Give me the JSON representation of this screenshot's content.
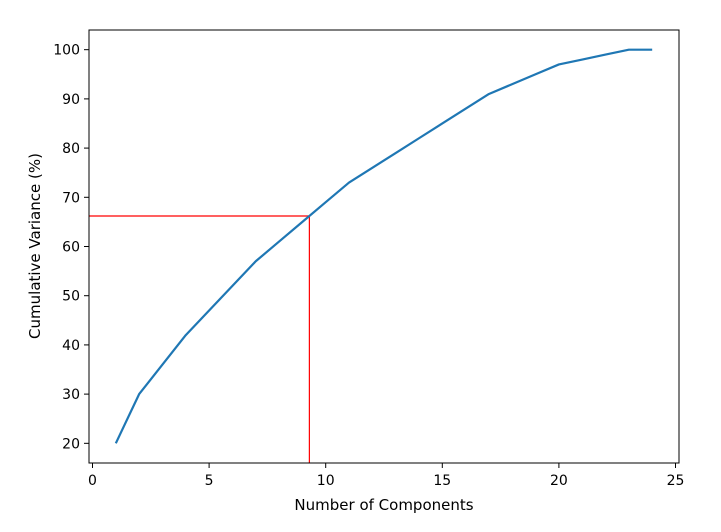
{
  "chart_data": {
    "type": "line",
    "title": "",
    "xlabel": "Number of Components",
    "ylabel": "Cumulative Variance (%)",
    "xlim": [
      -0.15,
      25.15
    ],
    "ylim": [
      16,
      104
    ],
    "xticks": [
      0,
      5,
      10,
      15,
      20,
      25
    ],
    "yticks": [
      20,
      30,
      40,
      50,
      60,
      70,
      80,
      90,
      100
    ],
    "grid": false,
    "legend": "none",
    "series": [
      {
        "color": "#1f77b4",
        "x": [
          1,
          2,
          3,
          4,
          5,
          6,
          7,
          8,
          9,
          10,
          11,
          12,
          13,
          14,
          15,
          16,
          17,
          18,
          19,
          20,
          21,
          22,
          23,
          24
        ],
        "y": [
          20,
          30,
          36,
          42,
          47,
          52,
          57,
          61,
          65,
          69,
          73,
          76,
          79,
          82,
          85,
          88,
          91,
          93,
          95,
          97,
          98,
          99,
          100,
          100
        ]
      }
    ],
    "reference_lines": {
      "color": "#ff0000",
      "x": 9.3,
      "y": 66.2
    }
  }
}
